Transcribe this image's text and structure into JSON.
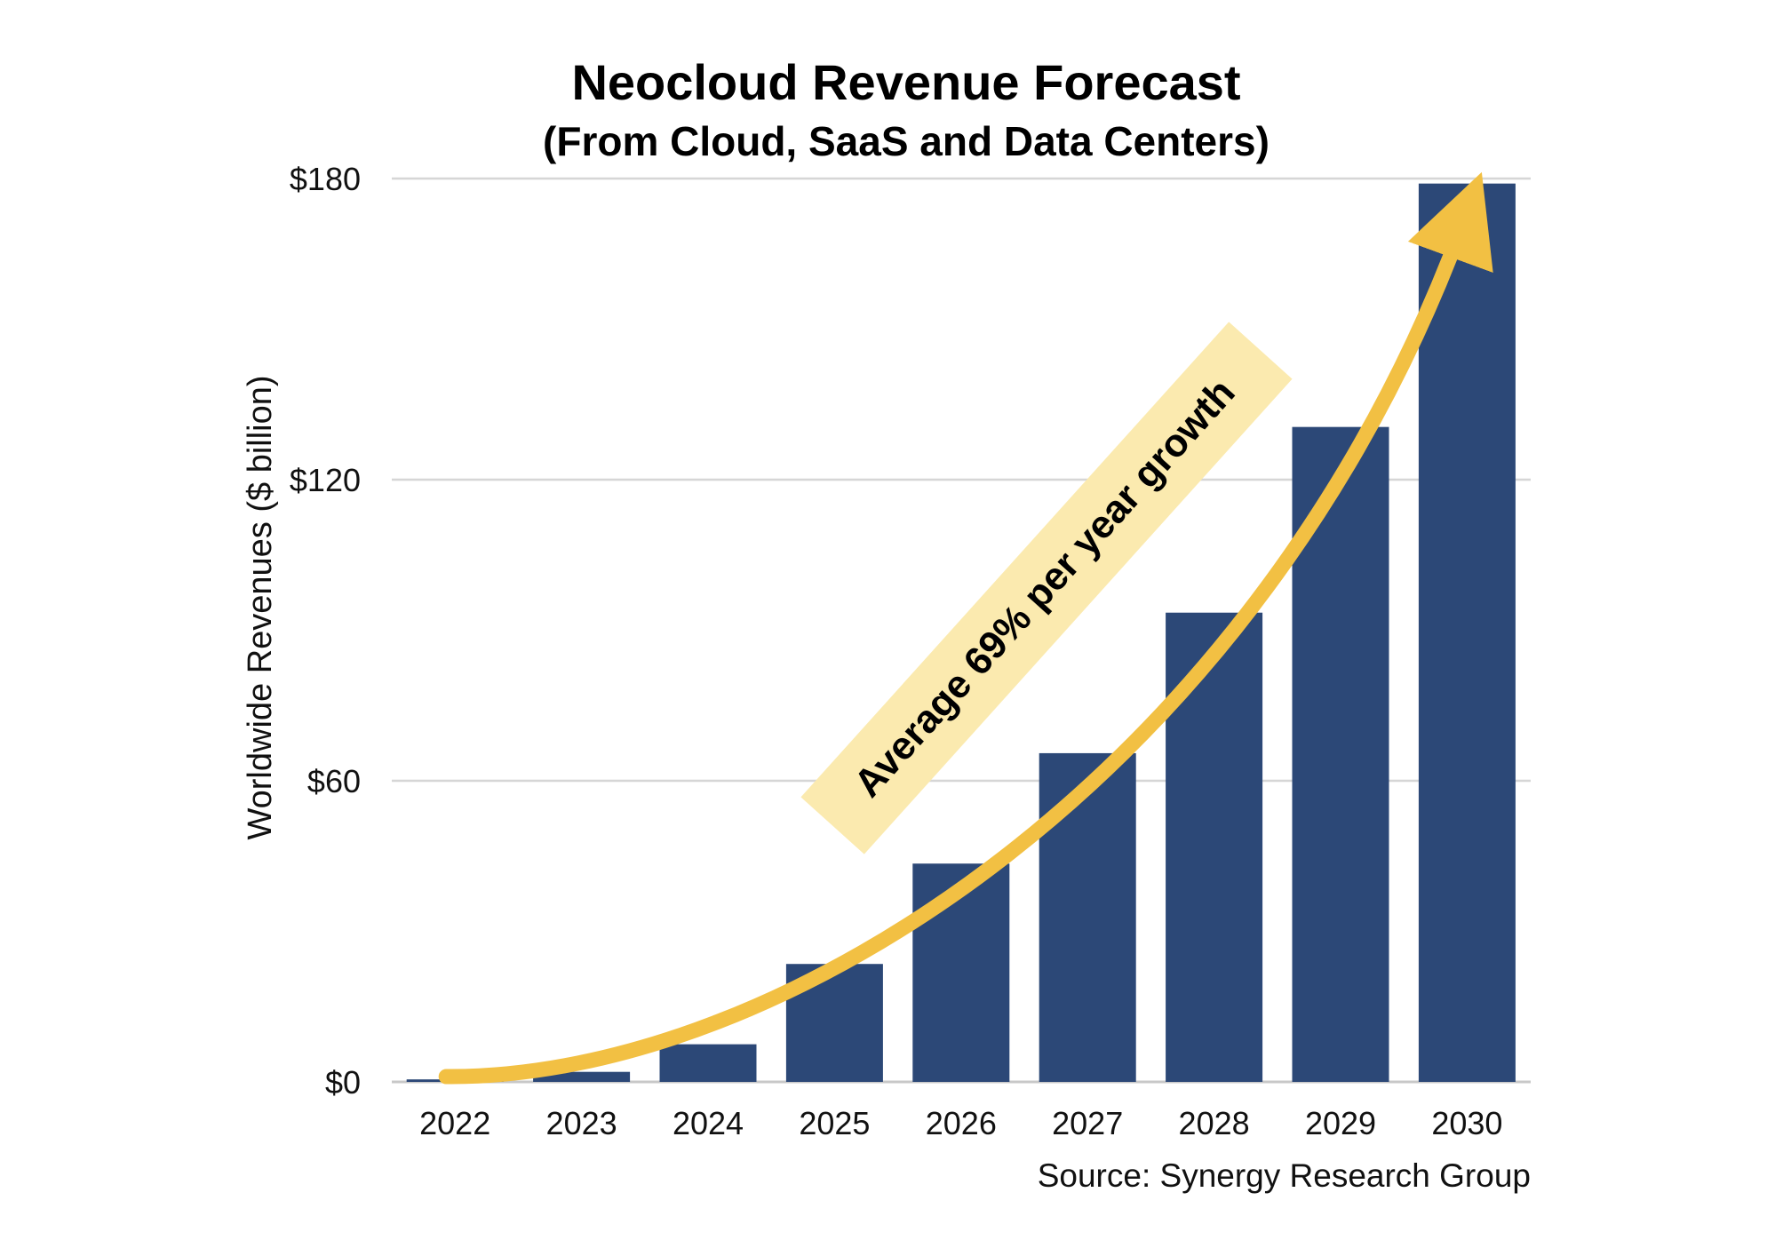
{
  "chart_data": {
    "type": "bar",
    "title": "Neocloud Revenue Forecast",
    "subtitle": "(From Cloud, SaaS and Data Centers)",
    "xlabel": "",
    "ylabel": "Worldwide Revenues ($ billion)",
    "categories": [
      "2022",
      "2023",
      "2024",
      "2025",
      "2026",
      "2027",
      "2028",
      "2029",
      "2030"
    ],
    "values": [
      0.5,
      2,
      7.5,
      23.5,
      43.5,
      65.5,
      93.5,
      130.5,
      179
    ],
    "ylim": [
      0,
      180
    ],
    "yticks": [
      0,
      60,
      120,
      180
    ],
    "ytick_labels": [
      "$0",
      "$60",
      "$120",
      "$180"
    ],
    "grid": true,
    "legend": "none",
    "bar_color": "#2c4877",
    "annotation": {
      "text": "Average 69% per year growth",
      "arrow_color": "#f2c043",
      "box_color": "#fbeaaf"
    },
    "source": "Source: Synergy Research Group"
  }
}
